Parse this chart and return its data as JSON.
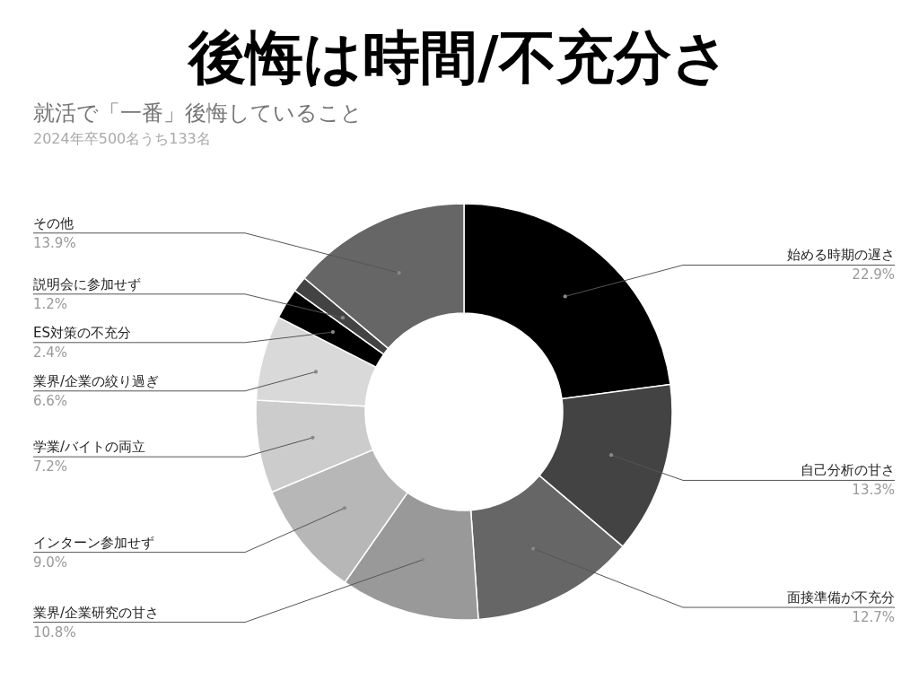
{
  "chart_data": {
    "type": "donut",
    "title": "後悔は時間/不充分さ",
    "subtitle": "就活で「一番」後悔していること",
    "annotations": [
      "2024年卒500名うち133名"
    ],
    "categories": [
      "始める時期の遅さ",
      "自己分析の甘さ",
      "面接準備が不充分",
      "業界/企業研究の甘さ",
      "インターン参加せず",
      "学業/バイトの両立",
      "業界/企業の絞り過ぎ",
      "ES対策の不充分",
      "説明会に参加せず",
      "その他"
    ],
    "values": [
      22.9,
      13.3,
      12.7,
      10.8,
      9.0,
      7.2,
      6.6,
      2.4,
      1.2,
      13.9
    ],
    "value_labels": [
      "22.9%",
      "13.3%",
      "12.7%",
      "10.8%",
      "9.0%",
      "7.2%",
      "6.6%",
      "2.4%",
      "1.2%",
      "13.9%"
    ],
    "colors": [
      "#000000",
      "#434343",
      "#666666",
      "#999999",
      "#b7b7b7",
      "#cccccc",
      "#d9d9d9",
      "#000000",
      "#434343",
      "#666666"
    ]
  }
}
